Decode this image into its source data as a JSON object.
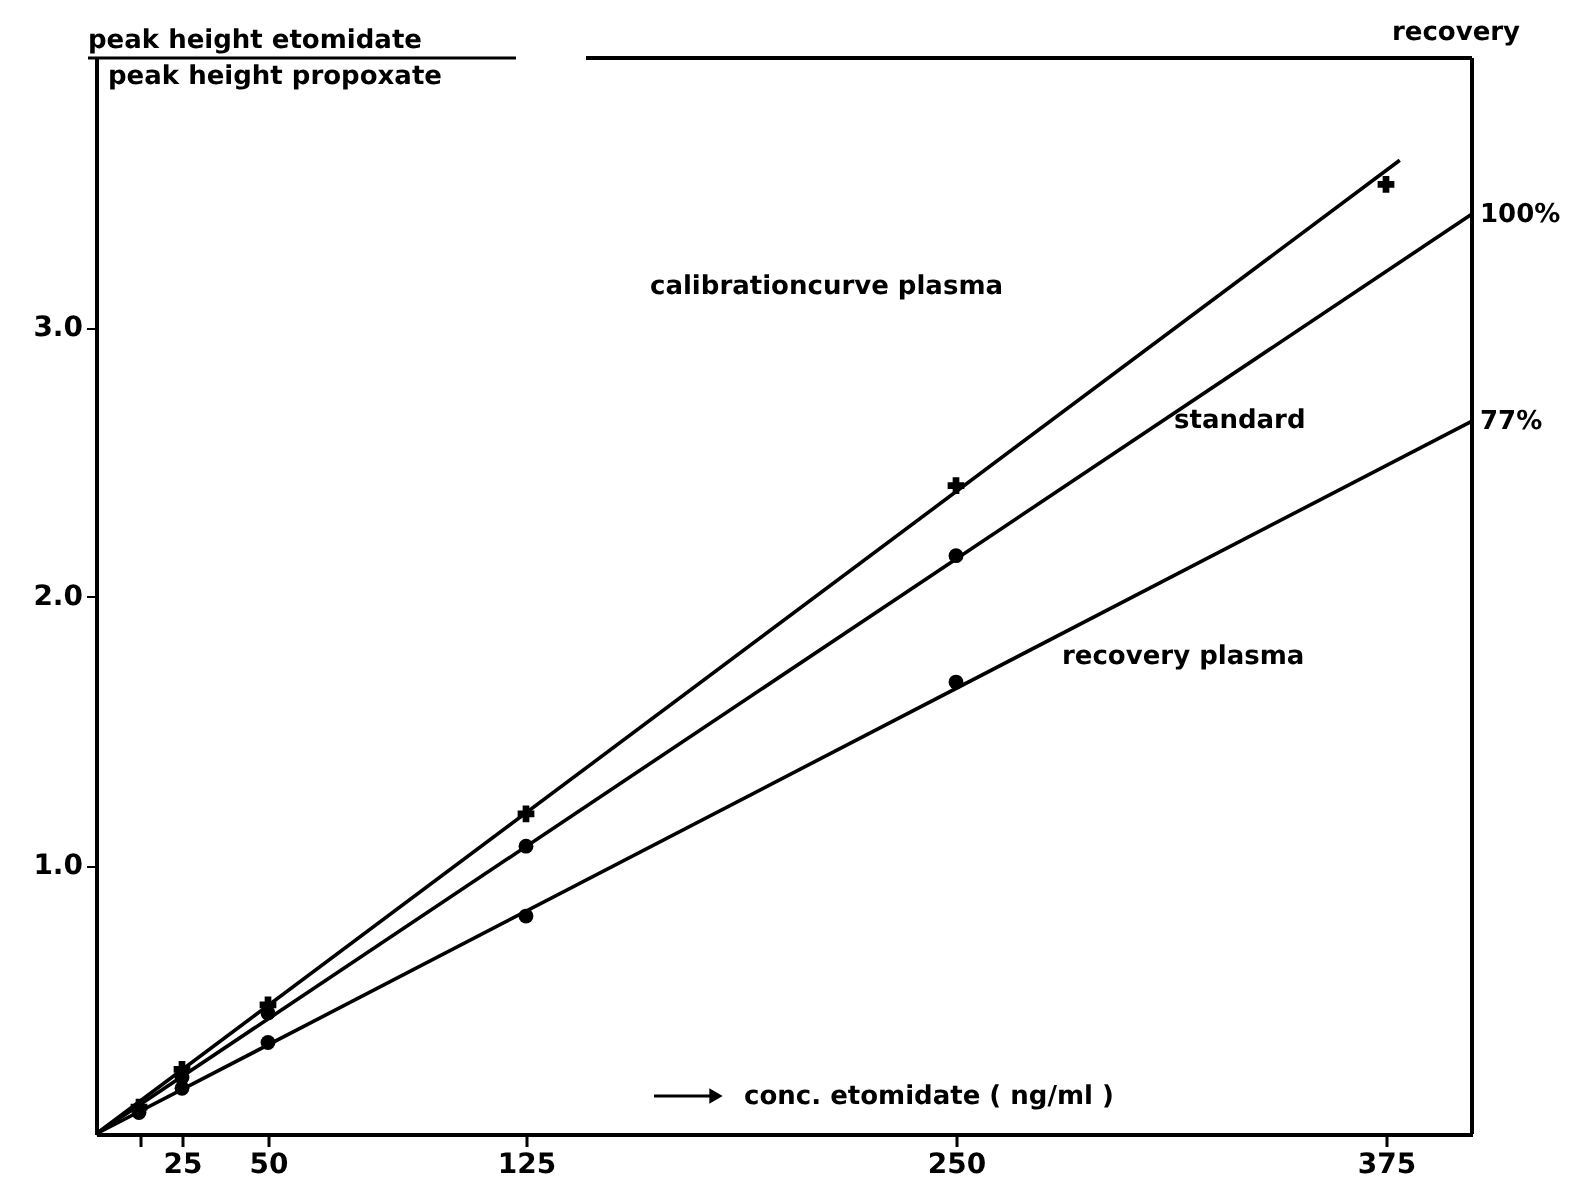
{
  "chart_data": {
    "type": "line",
    "xlabel": "conc. etomidate ( ng/ml )",
    "ylabel": "peak height etomidate\npeak height propoxate",
    "y2label": "recovery",
    "xlim": [
      0,
      400
    ],
    "ylim": [
      0,
      4.0
    ],
    "xticks": [
      {
        "value": 12.5,
        "label": null
      },
      25,
      50,
      125,
      250,
      375
    ],
    "yticks": [
      {
        "value": 1.0,
        "label": "1.0"
      },
      {
        "value": 2.0,
        "label": "2.0"
      },
      {
        "value": 3.0,
        "label": "3.0"
      }
    ],
    "grid": false,
    "line_style": "solid",
    "series": [
      {
        "color": "#000000",
        "marker": "none",
        "x": [
          0,
          379
        ],
        "values": [
          0,
          3.62
        ]
      },
      {
        "color": "#000000",
        "marker": "none",
        "x": [
          0,
          400
        ],
        "values": [
          0,
          3.42
        ]
      },
      {
        "color": "#000000",
        "marker": "none",
        "x": [
          0,
          400
        ],
        "values": [
          0,
          2.65
        ]
      },
      {
        "type": "scatter",
        "color": "#000000",
        "marker": "cross",
        "x": [
          12.5,
          25,
          50,
          125,
          250,
          375
        ],
        "values": [
          0.1,
          0.24,
          0.48,
          1.19,
          2.41,
          3.53
        ]
      },
      {
        "type": "scatter",
        "color": "#000000",
        "marker": "circle",
        "x": [
          25,
          50,
          125,
          250
        ],
        "values": [
          0.21,
          0.45,
          1.07,
          2.15
        ]
      },
      {
        "type": "scatter",
        "color": "#000000",
        "marker": "circle",
        "x": [
          12.5,
          25,
          50,
          125,
          250
        ],
        "values": [
          0.08,
          0.17,
          0.34,
          0.81,
          1.68
        ]
      }
    ],
    "annotations": [
      "calibrationcurve plasma",
      "standard",
      "recovery plasma",
      {
        "text": "100%",
        "x": 400,
        "y": 3.42
      },
      {
        "text": "77%",
        "x": 400,
        "y": 2.65
      }
    ]
  }
}
